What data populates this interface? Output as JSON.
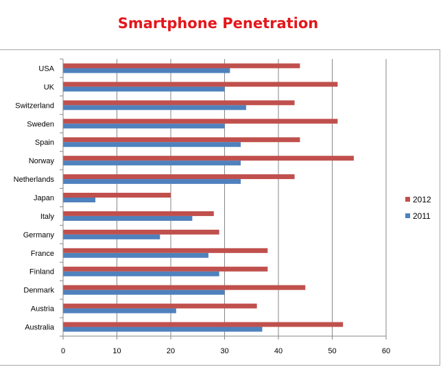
{
  "chart_data": {
    "type": "bar",
    "orientation": "horizontal",
    "title": "Smartphone Penetration",
    "xlabel": "",
    "ylabel": "",
    "categories": [
      "USA",
      "UK",
      "Switzerland",
      "Sweden",
      "Spain",
      "Norway",
      "Netherlands",
      "Japan",
      "Italy",
      "Germany",
      "France",
      "Finland",
      "Denmark",
      "Austria",
      "Australia"
    ],
    "series": [
      {
        "name": "2012",
        "color": "#c0504d",
        "values": [
          44,
          51,
          43,
          51,
          44,
          54,
          43,
          20,
          28,
          29,
          38,
          38,
          45,
          36,
          52
        ]
      },
      {
        "name": "2011",
        "color": "#4f81bd",
        "values": [
          31,
          30,
          34,
          30,
          33,
          33,
          33,
          6,
          24,
          18,
          27,
          29,
          30,
          21,
          37
        ]
      }
    ],
    "xlim": [
      0,
      60
    ],
    "xticks": [
      0,
      10,
      20,
      30,
      40,
      50,
      60
    ],
    "grid": true,
    "legend_position": "right",
    "title_color": "#e3171b"
  }
}
